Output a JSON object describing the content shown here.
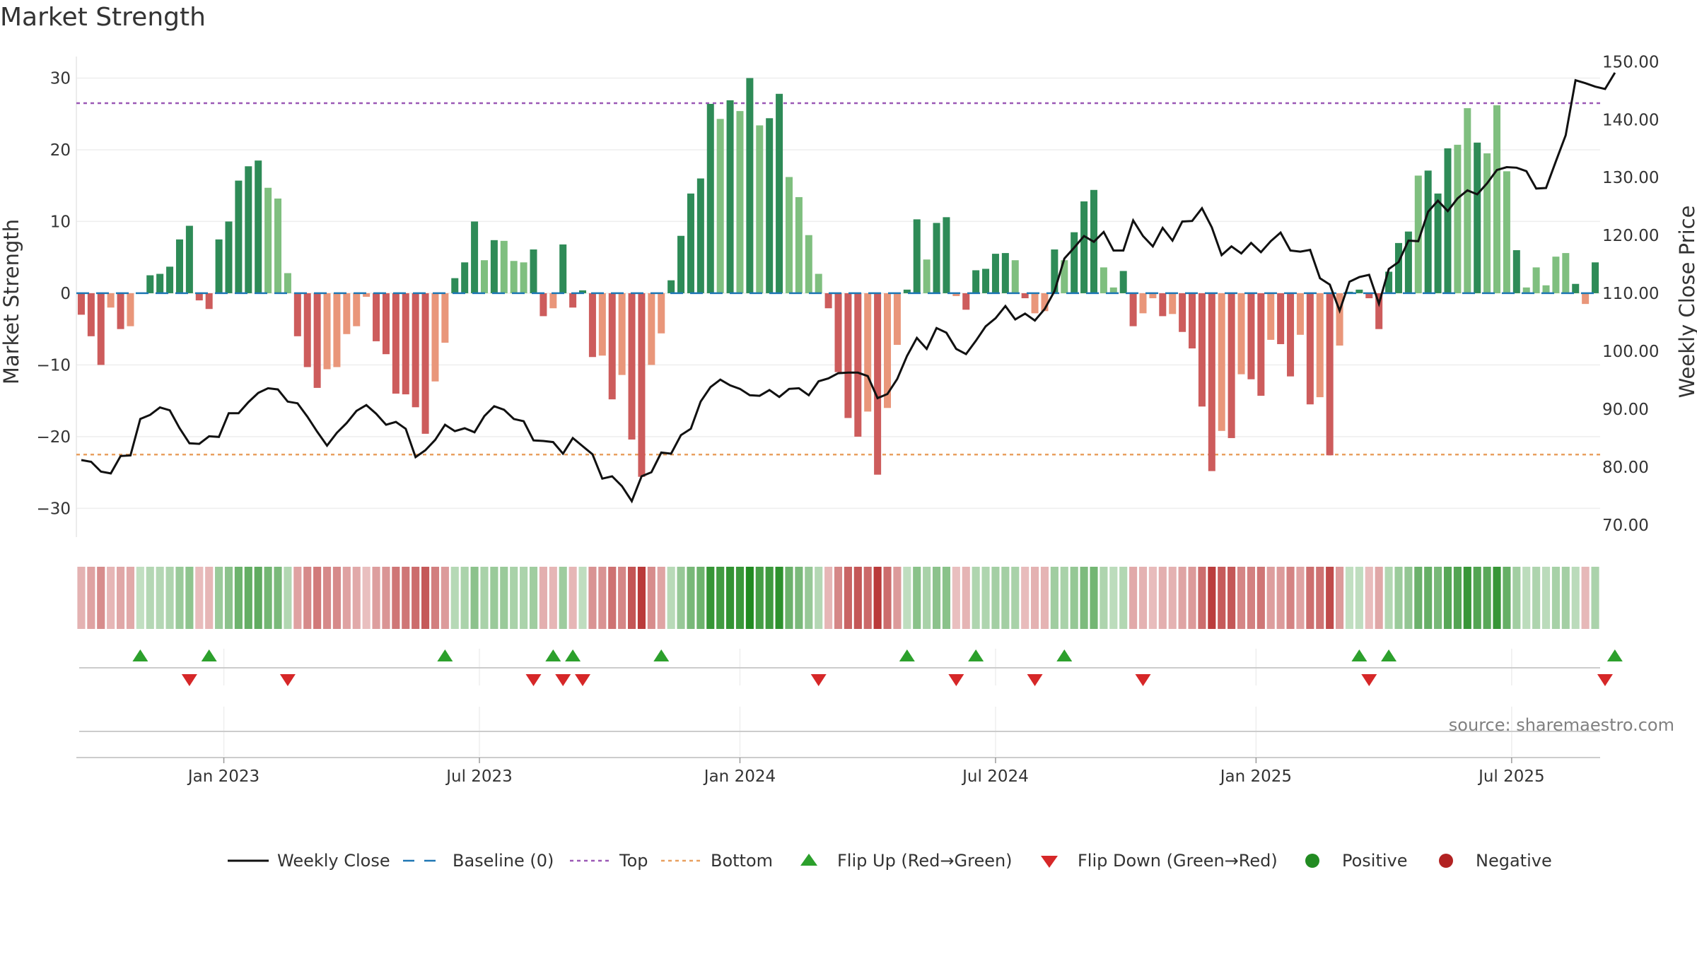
{
  "colors": {
    "pos_strong": "#2e8b57",
    "pos_weak": "#7fbf7f",
    "neg_strong": "#cd5c5c",
    "neg_weak": "#e9967a",
    "price": "#111111",
    "baseline": "#1f77b4",
    "top": "#9b59b6",
    "bottom": "#e8a060",
    "flip_up": "#2ca02c",
    "flip_down": "#d62728",
    "positive": "#228b22",
    "negative": "#b22222"
  },
  "chart_data": {
    "type": "bar+line",
    "title": "Market Strength",
    "ylabel_left": "Market Strength",
    "ylabel_right": "Weekly Close Price",
    "ylim_left": [
      -34,
      33
    ],
    "ylim_right": [
      67.9,
      150.9
    ],
    "left_ticks": [
      30,
      20,
      10,
      0,
      -10,
      -20,
      -30
    ],
    "left_tick_labels": [
      "30",
      "20",
      "10",
      "0",
      "−10",
      "−20",
      "−30"
    ],
    "right_ticks": [
      150,
      140,
      130,
      120,
      110,
      100,
      90,
      80,
      70
    ],
    "right_tick_labels": [
      "150.00",
      "140.00",
      "130.00",
      "120.00",
      "110.00",
      "100.00",
      "90.00",
      "80.00",
      "70.00"
    ],
    "top_line": 26.5,
    "bottom_line": -22.5,
    "x_labels": [
      {
        "week": 15,
        "label": "Jan 2023"
      },
      {
        "week": 41,
        "label": "Jul 2023"
      },
      {
        "week": 67.5,
        "label": "Jan 2024"
      },
      {
        "week": 93.5,
        "label": "Jul 2024"
      },
      {
        "week": 120,
        "label": "Jan 2025"
      },
      {
        "week": 146,
        "label": "Jul 2025"
      }
    ],
    "strength": [
      -3,
      -6,
      -10,
      -2,
      -5,
      -4.6,
      0,
      2.5,
      2.7,
      3.7,
      7.5,
      9.4,
      -1,
      -2.2,
      7.5,
      10,
      15.7,
      17.7,
      18.5,
      14.7,
      13.2,
      2.8,
      -6,
      -10.3,
      -13.2,
      -10.6,
      -10.3,
      -5.7,
      -4.6,
      -0.5,
      -6.7,
      -8.5,
      -14,
      -14.1,
      -15.9,
      -19.6,
      -12.3,
      -6.9,
      2.1,
      4.3,
      10,
      4.6,
      7.4,
      7.3,
      4.5,
      4.3,
      6.1,
      -3.2,
      -2.1,
      6.8,
      -2,
      0.4,
      -8.9,
      -8.7,
      -14.8,
      -11.4,
      -20.4,
      -25.6,
      -10,
      -5.6,
      1.8,
      8,
      13.9,
      16,
      26.4,
      24.3,
      26.9,
      25.4,
      30,
      23.4,
      24.4,
      27.8,
      16.2,
      13.4,
      8.1,
      2.7,
      -2.1,
      -11,
      -17.4,
      -20,
      -16.5,
      -25.3,
      -16,
      -7.2,
      0.5,
      10.3,
      4.7,
      9.8,
      10.6,
      -0.4,
      -2.3,
      3.2,
      3.4,
      5.5,
      5.6,
      4.6,
      -0.7,
      -2.8,
      -2.5,
      6.1,
      4.6,
      8.5,
      12.8,
      14.4,
      3.6,
      0.8,
      3.1,
      -4.6,
      -2.8,
      -0.7,
      -3.2,
      -2.9,
      -5.4,
      -7.7,
      -15.8,
      -24.8,
      -19.2,
      -20.2,
      -11.3,
      -12,
      -14.3,
      -6.5,
      -7.1,
      -11.6,
      -5.8,
      -15.5,
      -14.5,
      -22.6,
      -7.3,
      0.2,
      0.5,
      -0.7,
      -5,
      3,
      7,
      8.6,
      16.4,
      17.1,
      13.9,
      20.2,
      20.7,
      25.8,
      21,
      19.5,
      26.2,
      17,
      6,
      0.8,
      3.6,
      1.1,
      5.1,
      5.6,
      1.3,
      -1.5,
      4.3
    ],
    "strong": [
      1,
      1,
      1,
      0,
      1,
      0,
      1,
      1,
      1,
      1,
      1,
      1,
      1,
      1,
      1,
      1,
      1,
      1,
      1,
      0,
      0,
      0,
      1,
      1,
      1,
      0,
      0,
      0,
      0,
      0,
      1,
      1,
      1,
      1,
      1,
      1,
      0,
      0,
      1,
      1,
      1,
      0,
      1,
      0,
      0,
      0,
      1,
      1,
      0,
      1,
      1,
      1,
      1,
      0,
      1,
      0,
      1,
      1,
      0,
      0,
      1,
      1,
      1,
      1,
      1,
      0,
      1,
      0,
      1,
      0,
      1,
      1,
      0,
      0,
      0,
      0,
      1,
      1,
      1,
      1,
      0,
      1,
      0,
      0,
      1,
      1,
      0,
      1,
      1,
      0,
      1,
      1,
      1,
      1,
      1,
      0,
      1,
      0,
      0,
      1,
      0,
      1,
      1,
      1,
      0,
      0,
      1,
      1,
      0,
      0,
      1,
      0,
      1,
      1,
      1,
      1,
      0,
      1,
      0,
      1,
      1,
      0,
      1,
      1,
      0,
      1,
      0,
      1,
      0,
      1,
      1,
      1,
      1,
      1,
      1,
      1,
      0,
      1,
      1,
      1,
      0,
      0,
      1,
      0,
      0,
      0,
      1,
      0,
      0,
      0,
      0,
      0,
      1,
      0,
      1,
      0,
      1
    ],
    "price": [
      81.2,
      80.9,
      79.2,
      78.9,
      81.9,
      82,
      88.3,
      89,
      90.3,
      89.8,
      86.7,
      84.1,
      84,
      85.3,
      85.2,
      89.3,
      89.3,
      91.2,
      92.8,
      93.6,
      93.4,
      91.3,
      91,
      88.7,
      86.1,
      83.7,
      85.9,
      87.6,
      89.7,
      90.7,
      89.2,
      87.3,
      87.8,
      86.6,
      81.7,
      82.9,
      84.7,
      87.3,
      86.2,
      86.7,
      86,
      88.8,
      90.5,
      89.9,
      88.3,
      87.9,
      84.6,
      84.5,
      84.3,
      82.3,
      85,
      83.6,
      82.2,
      78,
      78.4,
      76.7,
      74.1,
      78.4,
      79.1,
      82.5,
      82.3,
      85.5,
      86.6,
      91.3,
      93.8,
      95.1,
      94.1,
      93.5,
      92.4,
      92.3,
      93.3,
      92.1,
      93.5,
      93.6,
      92.4,
      94.8,
      95.3,
      96.2,
      96.3,
      96.3,
      95.7,
      91.9,
      92.6,
      95.2,
      99.2,
      102.3,
      100.4,
      104,
      103.2,
      100.4,
      99.5,
      101.8,
      104.3,
      105.7,
      107.8,
      105.5,
      106.5,
      105.3,
      107.3,
      110.4,
      116,
      117.9,
      119.9,
      118.9,
      120.6,
      117.4,
      117.4,
      122.6,
      119.9,
      118.1,
      121.3,
      119.1,
      122.4,
      122.5,
      124.7,
      121.4,
      116.6,
      118.1,
      116.9,
      118.7,
      117.1,
      119,
      120.5,
      117.4,
      117.2,
      117.5,
      112.6,
      111.5,
      107,
      112,
      112.8,
      113.2,
      108.2,
      114.2,
      115.4,
      119.1,
      119,
      124.1,
      126,
      124.2,
      126.4,
      127.8,
      127.1,
      129,
      131.3,
      131.8,
      131.7,
      131.1,
      128.1,
      128.2,
      132.8,
      137.3,
      146.8,
      146.3,
      145.7,
      145.3,
      148.1
    ],
    "flip_up_weeks": [
      6.5,
      13.5,
      37.5,
      48.5,
      50.5,
      59.5,
      84.5,
      91.5,
      100.5,
      130.5,
      133.5,
      156.5
    ],
    "flip_down_weeks": [
      11.5,
      21.5,
      46.5,
      49.5,
      51.5,
      75.5,
      89.5,
      97.5,
      108.5,
      131.5,
      155.5
    ]
  },
  "legend": [
    {
      "label": "Weekly Close",
      "symbol": "solid-line",
      "color": "#111111"
    },
    {
      "label": "Baseline (0)",
      "symbol": "dashed-line",
      "color": "#1f77b4"
    },
    {
      "label": "Top",
      "symbol": "dotted-line",
      "color": "#9b59b6"
    },
    {
      "label": "Bottom",
      "symbol": "dotted-line",
      "color": "#e8a060"
    },
    {
      "label": "Flip Up (Red→Green)",
      "symbol": "triangle-up",
      "color": "#2ca02c"
    },
    {
      "label": "Flip Down (Green→Red)",
      "symbol": "triangle-down",
      "color": "#d62728"
    },
    {
      "label": "Positive",
      "symbol": "circle",
      "color": "#228b22"
    },
    {
      "label": "Negative",
      "symbol": "circle",
      "color": "#b22222"
    }
  ],
  "source": "source: sharemaestro.com"
}
